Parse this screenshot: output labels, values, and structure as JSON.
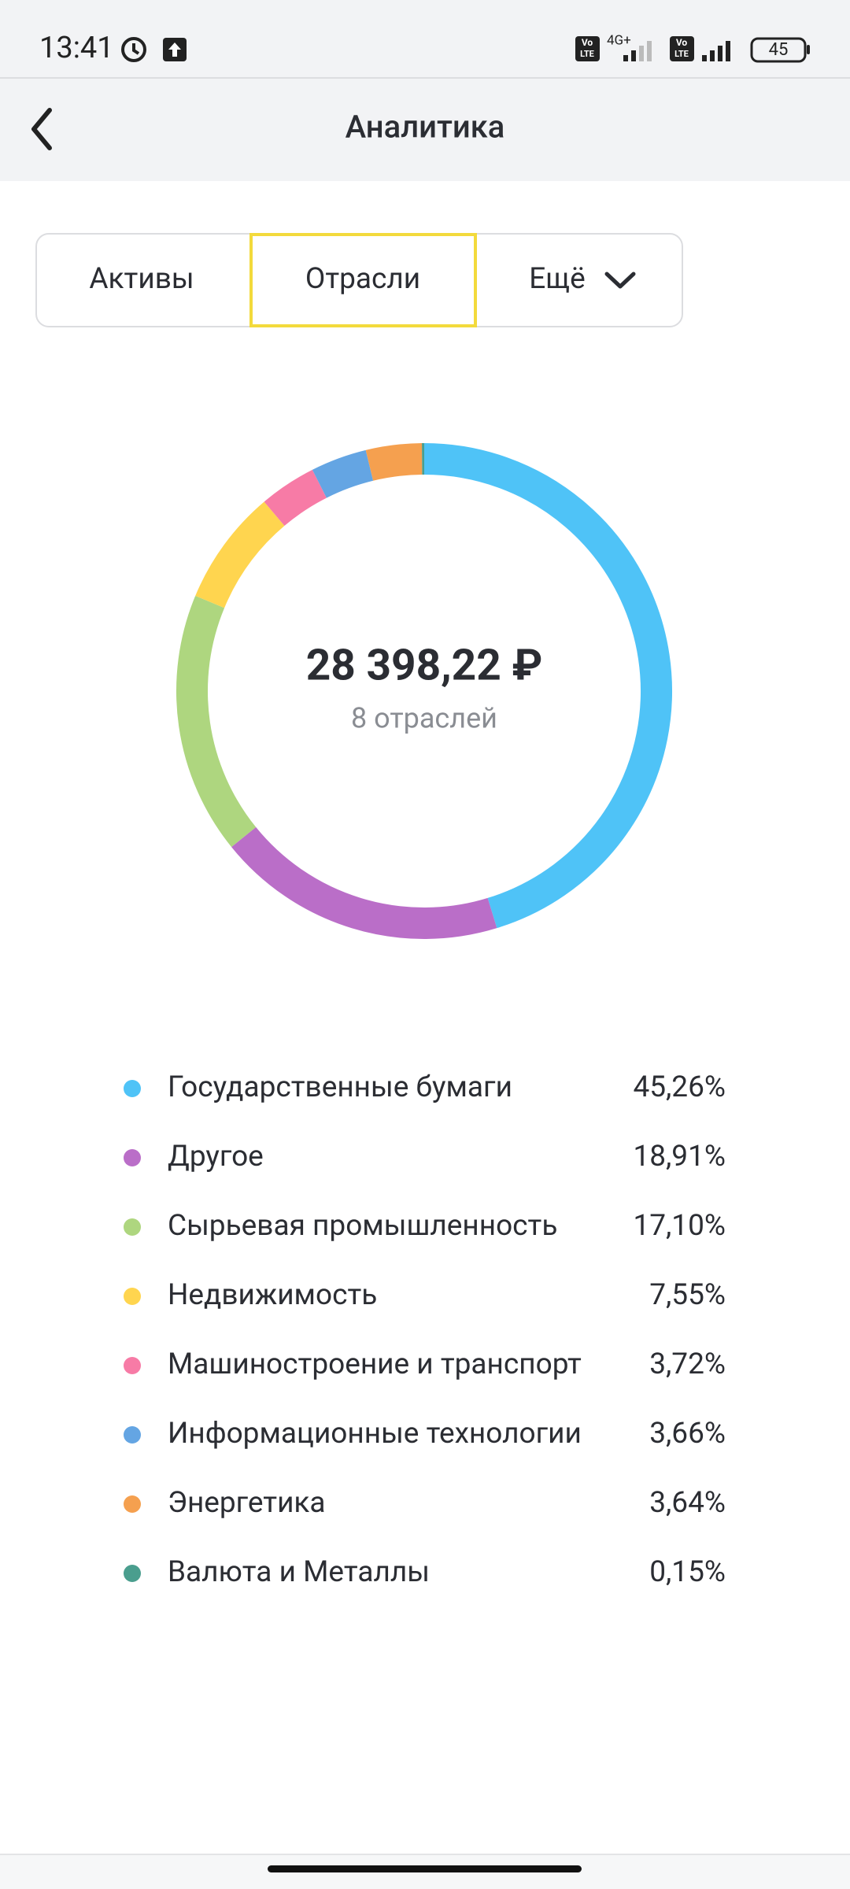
{
  "status_bar": {
    "time": "13:41",
    "network": "4G+",
    "volte_top": "Vo",
    "volte_bottom": "LTE",
    "battery": "45"
  },
  "header": {
    "title": "Аналитика"
  },
  "tabs": [
    "Активы",
    "Отрасли",
    "Ещё"
  ],
  "chart_data": {
    "type": "pie",
    "total": "28 398,22 ₽",
    "subtitle": "8 отраслей",
    "categories": [
      "Государственные бумаги",
      "Другое",
      "Сырьевая промышленность",
      "Недвижимость",
      "Машиностроение и транспорт",
      "Информационные технологии",
      "Энергетика",
      "Валюта и Металлы"
    ],
    "values": [
      45.26,
      18.91,
      17.1,
      7.55,
      3.72,
      3.66,
      3.64,
      0.15
    ],
    "value_labels": [
      "45,26%",
      "18,91%",
      "17,10%",
      "7,55%",
      "3,72%",
      "3,66%",
      "3,64%",
      "0,15%"
    ],
    "colors": [
      "#4fc3f7",
      "#ba6ec8",
      "#aed67f",
      "#ffd54f",
      "#f77ba6",
      "#64a5e3",
      "#f5a04f",
      "#4a9e8e"
    ]
  }
}
